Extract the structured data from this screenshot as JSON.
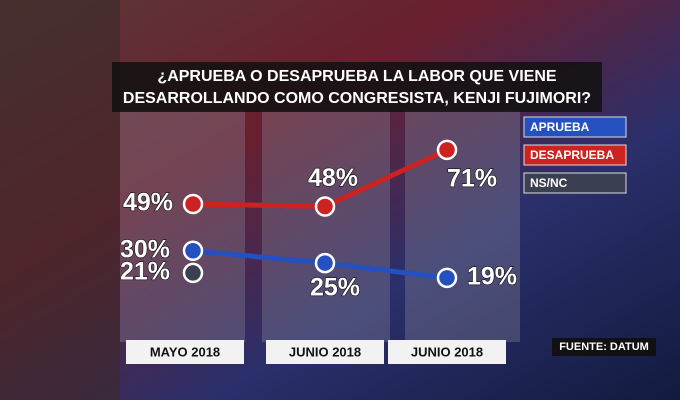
{
  "chart_data": {
    "type": "line",
    "title_lines": [
      "¿APRUEBA O DESAPRUEBA LA LABOR QUE VIENE",
      "DESARROLLANDO COMO CONGRESISTA, KENJI FUJIMORI?"
    ],
    "categories": [
      "MAYO 2018",
      "JUNIO 2018",
      "JUNIO 2018"
    ],
    "ylim": [
      10,
      75
    ],
    "series": [
      {
        "name": "APRUEBA",
        "color": "#2450c0",
        "values": [
          30,
          25,
          19
        ],
        "value_labels": [
          "30%",
          "25%",
          "19%"
        ]
      },
      {
        "name": "DESAPRUEBA",
        "color": "#cc2222",
        "values": [
          49,
          48,
          71
        ],
        "value_labels": [
          "49%",
          "48%",
          "71%"
        ]
      },
      {
        "name": "NS/NC",
        "color": "#3a3f52",
        "values": [
          21,
          null,
          null
        ],
        "value_labels": [
          "21%",
          null,
          null
        ]
      }
    ],
    "source": "FUENTE: DATUM"
  }
}
